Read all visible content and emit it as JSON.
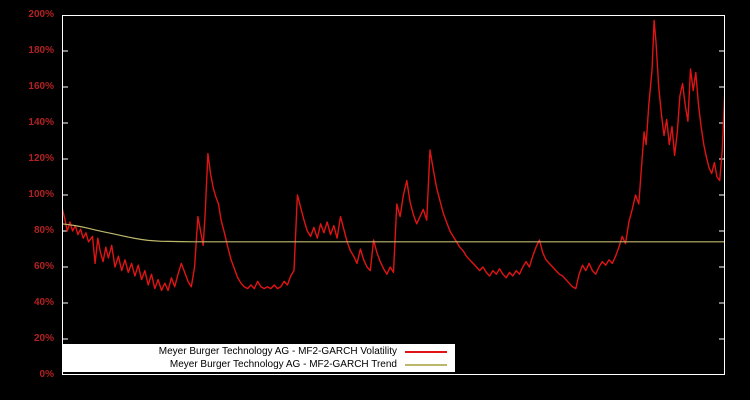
{
  "chart_data": {
    "type": "line",
    "background": "#000000",
    "axis_box_color": "#ffffff",
    "tick_label_color": "#b22222",
    "legend_position": "bottom-left-inside",
    "grid": false,
    "ylim": [
      0,
      200
    ],
    "yticks": [
      "0%",
      "20%",
      "40%",
      "60%",
      "80%",
      "100%",
      "120%",
      "140%",
      "160%",
      "180%",
      "200%"
    ],
    "ytick_values": [
      0,
      20,
      40,
      60,
      80,
      100,
      120,
      140,
      160,
      180,
      200
    ],
    "series": [
      {
        "id": "volatility",
        "name": "Meyer Burger Technology AG - MF2-GARCH Volatility",
        "color": "#e01414",
        "stroke_width": 1.4,
        "points": [
          [
            0.0,
            93
          ],
          [
            0.004,
            87
          ],
          [
            0.008,
            80
          ],
          [
            0.012,
            85
          ],
          [
            0.016,
            80
          ],
          [
            0.02,
            83
          ],
          [
            0.024,
            78
          ],
          [
            0.028,
            81
          ],
          [
            0.032,
            76
          ],
          [
            0.036,
            79
          ],
          [
            0.04,
            74
          ],
          [
            0.046,
            77
          ],
          [
            0.05,
            62
          ],
          [
            0.054,
            76
          ],
          [
            0.058,
            68
          ],
          [
            0.062,
            63
          ],
          [
            0.066,
            71
          ],
          [
            0.07,
            65
          ],
          [
            0.075,
            72
          ],
          [
            0.08,
            60
          ],
          [
            0.085,
            66
          ],
          [
            0.09,
            58
          ],
          [
            0.095,
            64
          ],
          [
            0.1,
            57
          ],
          [
            0.105,
            62
          ],
          [
            0.11,
            55
          ],
          [
            0.115,
            61
          ],
          [
            0.12,
            53
          ],
          [
            0.125,
            58
          ],
          [
            0.13,
            50
          ],
          [
            0.135,
            56
          ],
          [
            0.14,
            48
          ],
          [
            0.145,
            53
          ],
          [
            0.15,
            47
          ],
          [
            0.155,
            51
          ],
          [
            0.16,
            47
          ],
          [
            0.165,
            54
          ],
          [
            0.17,
            49
          ],
          [
            0.175,
            56
          ],
          [
            0.18,
            62
          ],
          [
            0.185,
            57
          ],
          [
            0.19,
            52
          ],
          [
            0.195,
            49
          ],
          [
            0.2,
            60
          ],
          [
            0.205,
            88
          ],
          [
            0.21,
            78
          ],
          [
            0.213,
            72
          ],
          [
            0.216,
            90
          ],
          [
            0.22,
            123
          ],
          [
            0.224,
            112
          ],
          [
            0.228,
            104
          ],
          [
            0.232,
            99
          ],
          [
            0.236,
            95
          ],
          [
            0.24,
            86
          ],
          [
            0.245,
            79
          ],
          [
            0.25,
            71
          ],
          [
            0.255,
            64
          ],
          [
            0.26,
            59
          ],
          [
            0.265,
            54
          ],
          [
            0.27,
            51
          ],
          [
            0.275,
            49
          ],
          [
            0.28,
            48
          ],
          [
            0.285,
            50
          ],
          [
            0.29,
            48
          ],
          [
            0.295,
            52
          ],
          [
            0.3,
            49
          ],
          [
            0.305,
            48
          ],
          [
            0.31,
            49
          ],
          [
            0.315,
            48
          ],
          [
            0.32,
            50
          ],
          [
            0.325,
            48
          ],
          [
            0.33,
            49
          ],
          [
            0.335,
            52
          ],
          [
            0.34,
            50
          ],
          [
            0.345,
            55
          ],
          [
            0.35,
            58
          ],
          [
            0.355,
            100
          ],
          [
            0.36,
            93
          ],
          [
            0.365,
            86
          ],
          [
            0.37,
            80
          ],
          [
            0.375,
            77
          ],
          [
            0.38,
            82
          ],
          [
            0.385,
            76
          ],
          [
            0.39,
            84
          ],
          [
            0.395,
            79
          ],
          [
            0.4,
            85
          ],
          [
            0.405,
            78
          ],
          [
            0.41,
            83
          ],
          [
            0.415,
            76
          ],
          [
            0.42,
            88
          ],
          [
            0.425,
            81
          ],
          [
            0.43,
            74
          ],
          [
            0.435,
            69
          ],
          [
            0.44,
            66
          ],
          [
            0.445,
            62
          ],
          [
            0.45,
            70
          ],
          [
            0.455,
            64
          ],
          [
            0.46,
            60
          ],
          [
            0.465,
            58
          ],
          [
            0.47,
            75
          ],
          [
            0.475,
            68
          ],
          [
            0.48,
            63
          ],
          [
            0.485,
            59
          ],
          [
            0.49,
            56
          ],
          [
            0.495,
            60
          ],
          [
            0.5,
            57
          ],
          [
            0.505,
            95
          ],
          [
            0.51,
            88
          ],
          [
            0.515,
            100
          ],
          [
            0.52,
            108
          ],
          [
            0.525,
            96
          ],
          [
            0.53,
            89
          ],
          [
            0.535,
            84
          ],
          [
            0.54,
            88
          ],
          [
            0.545,
            92
          ],
          [
            0.55,
            86
          ],
          [
            0.555,
            125
          ],
          [
            0.56,
            114
          ],
          [
            0.565,
            104
          ],
          [
            0.57,
            97
          ],
          [
            0.575,
            90
          ],
          [
            0.58,
            85
          ],
          [
            0.585,
            80
          ],
          [
            0.59,
            77
          ],
          [
            0.595,
            74
          ],
          [
            0.6,
            71
          ],
          [
            0.605,
            69
          ],
          [
            0.61,
            66
          ],
          [
            0.615,
            64
          ],
          [
            0.62,
            62
          ],
          [
            0.625,
            60
          ],
          [
            0.63,
            58
          ],
          [
            0.635,
            60
          ],
          [
            0.64,
            57
          ],
          [
            0.645,
            55
          ],
          [
            0.65,
            58
          ],
          [
            0.655,
            56
          ],
          [
            0.66,
            59
          ],
          [
            0.665,
            56
          ],
          [
            0.67,
            54
          ],
          [
            0.675,
            57
          ],
          [
            0.68,
            55
          ],
          [
            0.685,
            58
          ],
          [
            0.69,
            56
          ],
          [
            0.695,
            60
          ],
          [
            0.7,
            63
          ],
          [
            0.705,
            60
          ],
          [
            0.71,
            66
          ],
          [
            0.715,
            71
          ],
          [
            0.72,
            75
          ],
          [
            0.725,
            68
          ],
          [
            0.73,
            64
          ],
          [
            0.735,
            62
          ],
          [
            0.74,
            60
          ],
          [
            0.745,
            58
          ],
          [
            0.75,
            56
          ],
          [
            0.755,
            55
          ],
          [
            0.76,
            53
          ],
          [
            0.765,
            51
          ],
          [
            0.77,
            49
          ],
          [
            0.775,
            48
          ],
          [
            0.78,
            56
          ],
          [
            0.785,
            61
          ],
          [
            0.79,
            58
          ],
          [
            0.795,
            62
          ],
          [
            0.8,
            58
          ],
          [
            0.805,
            56
          ],
          [
            0.81,
            60
          ],
          [
            0.815,
            63
          ],
          [
            0.82,
            61
          ],
          [
            0.825,
            64
          ],
          [
            0.83,
            62
          ],
          [
            0.835,
            66
          ],
          [
            0.84,
            71
          ],
          [
            0.845,
            77
          ],
          [
            0.85,
            73
          ],
          [
            0.855,
            85
          ],
          [
            0.86,
            92
          ],
          [
            0.865,
            100
          ],
          [
            0.87,
            95
          ],
          [
            0.875,
            120
          ],
          [
            0.878,
            135
          ],
          [
            0.881,
            128
          ],
          [
            0.885,
            150
          ],
          [
            0.89,
            170
          ],
          [
            0.893,
            197
          ],
          [
            0.896,
            185
          ],
          [
            0.9,
            160
          ],
          [
            0.904,
            145
          ],
          [
            0.908,
            133
          ],
          [
            0.912,
            142
          ],
          [
            0.916,
            128
          ],
          [
            0.92,
            138
          ],
          [
            0.924,
            122
          ],
          [
            0.928,
            135
          ],
          [
            0.932,
            155
          ],
          [
            0.936,
            162
          ],
          [
            0.94,
            150
          ],
          [
            0.944,
            141
          ],
          [
            0.948,
            170
          ],
          [
            0.952,
            158
          ],
          [
            0.956,
            168
          ],
          [
            0.96,
            150
          ],
          [
            0.964,
            138
          ],
          [
            0.968,
            128
          ],
          [
            0.972,
            121
          ],
          [
            0.976,
            115
          ],
          [
            0.98,
            112
          ],
          [
            0.984,
            118
          ],
          [
            0.988,
            110
          ],
          [
            0.992,
            108
          ],
          [
            0.996,
            125
          ],
          [
            1.0,
            160
          ]
        ]
      },
      {
        "id": "trend",
        "name": "Meyer Burger Technology AG - MF2-GARCH Trend",
        "color": "#bdb76b",
        "stroke_width": 1.2,
        "points": [
          [
            0.0,
            84
          ],
          [
            0.01,
            83.5
          ],
          [
            0.02,
            83
          ],
          [
            0.03,
            82.3
          ],
          [
            0.04,
            81.5
          ],
          [
            0.05,
            80.6
          ],
          [
            0.06,
            79.8
          ],
          [
            0.07,
            79
          ],
          [
            0.08,
            78.2
          ],
          [
            0.09,
            77.4
          ],
          [
            0.1,
            76.6
          ],
          [
            0.11,
            75.9
          ],
          [
            0.12,
            75.3
          ],
          [
            0.13,
            74.8
          ],
          [
            0.14,
            74.5
          ],
          [
            0.15,
            74.3
          ],
          [
            0.16,
            74.2
          ],
          [
            0.18,
            74.1
          ],
          [
            0.2,
            74
          ],
          [
            1.0,
            74
          ]
        ]
      }
    ]
  }
}
